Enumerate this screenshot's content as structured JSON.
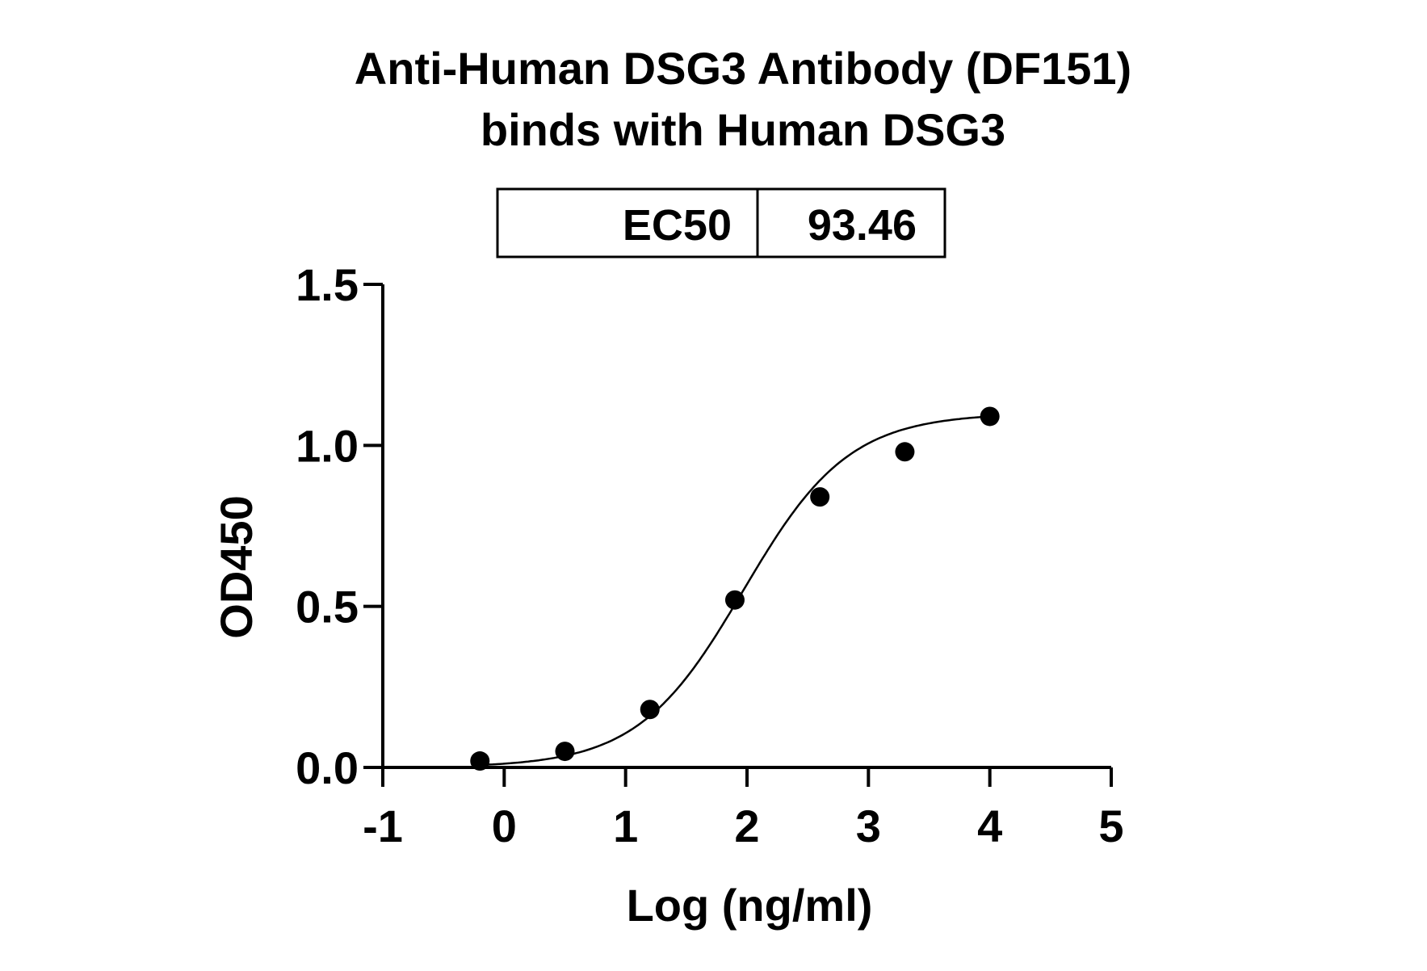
{
  "chart_data": {
    "type": "scatter",
    "title": "Anti-Human DSG3 Antibody (DF151)",
    "subtitle": "binds with Human DSG3",
    "xlabel": "Log (ng/ml)",
    "ylabel": "OD450",
    "xlim": [
      -1,
      5
    ],
    "ylim": [
      0,
      1.5
    ],
    "x_ticks": [
      "-1",
      "0",
      "1",
      "2",
      "3",
      "4",
      "5"
    ],
    "y_ticks": [
      "0.0",
      "0.5",
      "1.0",
      "1.5"
    ],
    "grid": false,
    "legend": "none",
    "ec50_table": {
      "label": "EC50",
      "value": "93.46"
    },
    "series": [
      {
        "points": [
          {
            "x": -0.2,
            "y": 0.02
          },
          {
            "x": 0.5,
            "y": 0.05
          },
          {
            "x": 1.2,
            "y": 0.18
          },
          {
            "x": 1.9,
            "y": 0.52
          },
          {
            "x": 2.6,
            "y": 0.84
          },
          {
            "x": 3.3,
            "y": 0.98
          },
          {
            "x": 4.0,
            "y": 1.09
          }
        ],
        "fit": {
          "model": "four-parameter logistic",
          "bottom": 0.0,
          "top": 1.1,
          "log_ec50": 1.97,
          "hill_slope": 1.0
        }
      }
    ],
    "colors": {
      "points": "#000000",
      "curve": "#000000",
      "axes": "#000000"
    }
  }
}
